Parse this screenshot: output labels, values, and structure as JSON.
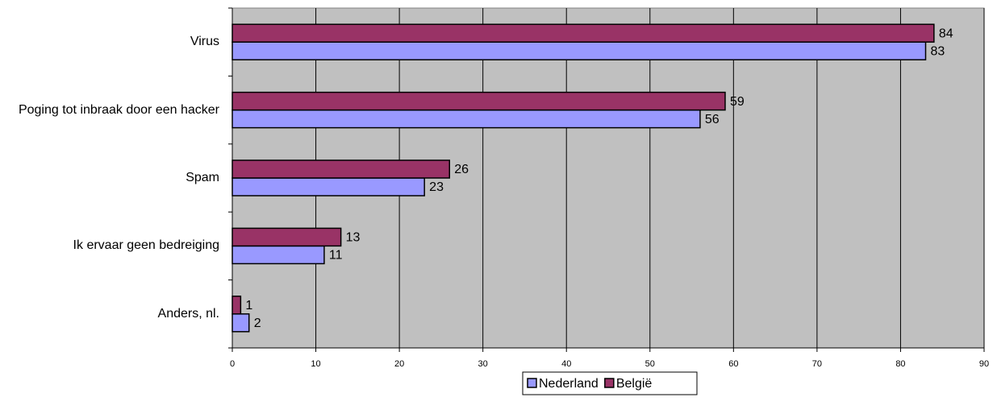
{
  "chart_data": {
    "type": "bar",
    "orientation": "horizontal",
    "categories": [
      "Virus",
      "Poging tot inbraak door een hacker",
      "Spam",
      "Ik ervaar geen bedreiging",
      "Anders, nl."
    ],
    "series": [
      {
        "name": "Nederland",
        "color": "#9999ff",
        "values": [
          83,
          56,
          23,
          11,
          2
        ]
      },
      {
        "name": "België",
        "color": "#993366",
        "values": [
          84,
          59,
          26,
          13,
          1
        ]
      }
    ],
    "xlim": [
      0,
      90
    ],
    "xticks": [
      0,
      10,
      20,
      30,
      40,
      50,
      60,
      70,
      80,
      90
    ],
    "grid": true,
    "legend": "bottom"
  }
}
